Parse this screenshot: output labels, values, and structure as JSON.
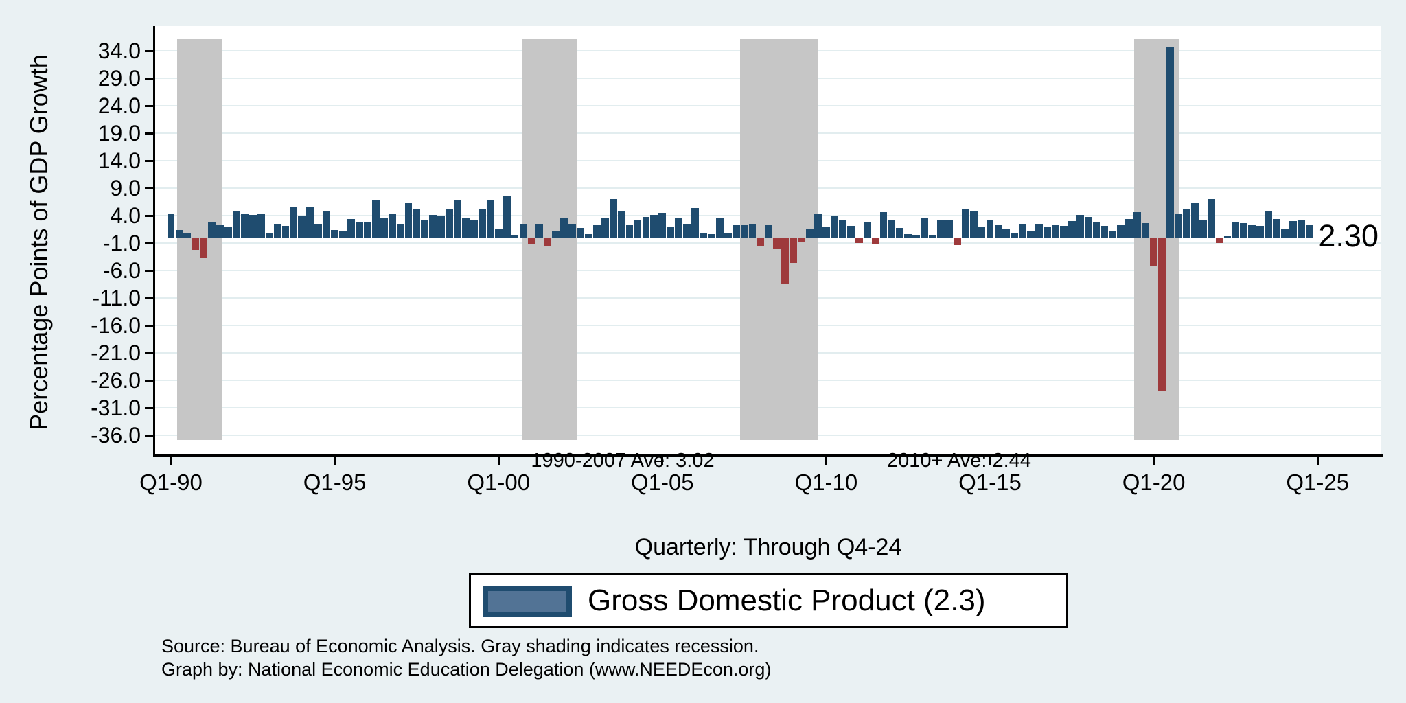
{
  "y_axis": {
    "title": "Percentage Points of GDP Growth",
    "tick_values": [
      34,
      29,
      24,
      19,
      14,
      9,
      4,
      -1,
      -6,
      -11,
      -16,
      -21,
      -26,
      -31,
      -36
    ]
  },
  "x_axis": {
    "title": "Quarterly: Through Q4-24",
    "tick_labels": [
      "Q1-90",
      "Q1-95",
      "Q1-00",
      "Q1-05",
      "Q1-10",
      "Q1-15",
      "Q1-20",
      "Q1-25"
    ]
  },
  "annotations": {
    "period1_average": "1990-2007 Ave: 3.02",
    "period2_average": "2010+ Ave: 2.44",
    "last_value_label": "2.30"
  },
  "legend": {
    "label": "Gross Domestic Product (2.3)"
  },
  "footer": {
    "line1": "Source: Bureau of Economic Analysis. Gray shading indicates recession.",
    "line2": "Graph by: National Economic Education Delegation (www.NEEDEcon.org)"
  },
  "colors": {
    "background": "#eaf1f3",
    "plot_background": "#ffffff",
    "gridline": "#e2edef",
    "bar_positive": "#1f4c6f",
    "bar_negative": "#9e3a3c",
    "recession_band": "#c6c6c6",
    "axis": "#000000",
    "legend_swatch_fill": "#527395"
  },
  "chart_data": {
    "type": "bar",
    "title": "",
    "xlabel": "Quarterly: Through Q4-24",
    "ylabel": "Percentage Points of GDP Growth",
    "x_unit": "quarter",
    "x_start": "1990Q1",
    "x_end": "2024Q4",
    "ylim": [
      -39.5,
      38.5
    ],
    "ytick_step": 5,
    "grid": true,
    "legend_position": "bottom",
    "series_name": "Gross Domestic Product",
    "values_by_year": {
      "1990": [
        4.2,
        1.4,
        0.8,
        -2.3
      ],
      "1991": [
        -3.8,
        2.8,
        2.2,
        1.9
      ],
      "1992": [
        4.9,
        4.4,
        4.1,
        4.2
      ],
      "1993": [
        0.7,
        2.4,
        2.1,
        5.5
      ],
      "1994": [
        3.9,
        5.6,
        2.4,
        4.7
      ],
      "1995": [
        1.4,
        1.2,
        3.4,
        2.9
      ],
      "1996": [
        2.7,
        6.8,
        3.6,
        4.4
      ],
      "1997": [
        2.4,
        6.2,
        5.1,
        3.1
      ],
      "1998": [
        4.1,
        3.9,
        5.3,
        6.7
      ],
      "1999": [
        3.6,
        3.2,
        5.3,
        6.8
      ],
      "2000": [
        1.5,
        7.5,
        0.5,
        2.5
      ],
      "2001": [
        -1.3,
        2.5,
        -1.6,
        1.1
      ],
      "2002": [
        3.5,
        2.4,
        1.8,
        0.6
      ],
      "2003": [
        2.2,
        3.5,
        7.0,
        4.7
      ],
      "2004": [
        2.2,
        3.1,
        3.8,
        4.1
      ],
      "2005": [
        4.5,
        1.9,
        3.6,
        2.5
      ],
      "2006": [
        5.4,
        0.9,
        0.6,
        3.5
      ],
      "2007": [
        0.9,
        2.3,
        2.2,
        2.5
      ],
      "2008": [
        -1.6,
        2.3,
        -2.1,
        -8.5
      ],
      "2009": [
        -4.6,
        -0.7,
        1.5,
        4.3
      ],
      "2010": [
        2.0,
        3.9,
        3.1,
        2.1
      ],
      "2011": [
        -1.0,
        2.7,
        -1.3,
        4.6
      ],
      "2012": [
        3.3,
        1.8,
        0.6,
        0.5
      ],
      "2013": [
        3.6,
        0.5,
        3.2,
        3.2
      ],
      "2014": [
        -1.4,
        5.2,
        4.7,
        2.0
      ],
      "2015": [
        3.3,
        2.3,
        1.6,
        0.7
      ],
      "2016": [
        2.4,
        1.2,
        2.4,
        2.0
      ],
      "2017": [
        2.3,
        2.1,
        3.0,
        4.1
      ],
      "2018": [
        3.8,
        2.7,
        2.1,
        1.3
      ],
      "2019": [
        2.2,
        3.4,
        4.6,
        2.6
      ],
      "2020": [
        -5.3,
        -28.0,
        34.8,
        4.2
      ],
      "2021": [
        5.2,
        6.2,
        3.3,
        7.0
      ],
      "2022": [
        -1.0,
        0.3,
        2.7,
        2.6
      ],
      "2023": [
        2.2,
        2.1,
        4.9,
        3.4
      ],
      "2024": [
        1.6,
        3.0,
        3.1,
        2.3
      ]
    },
    "recession_bands_quarter_index": [
      [
        0.75,
        6.2
      ],
      [
        42.8,
        49.6
      ],
      [
        69.5,
        79.0
      ],
      [
        117.6,
        123.1
      ]
    ],
    "averages": {
      "1990-2007": 3.02,
      "2010+": 2.44
    },
    "last_value": 2.3
  }
}
